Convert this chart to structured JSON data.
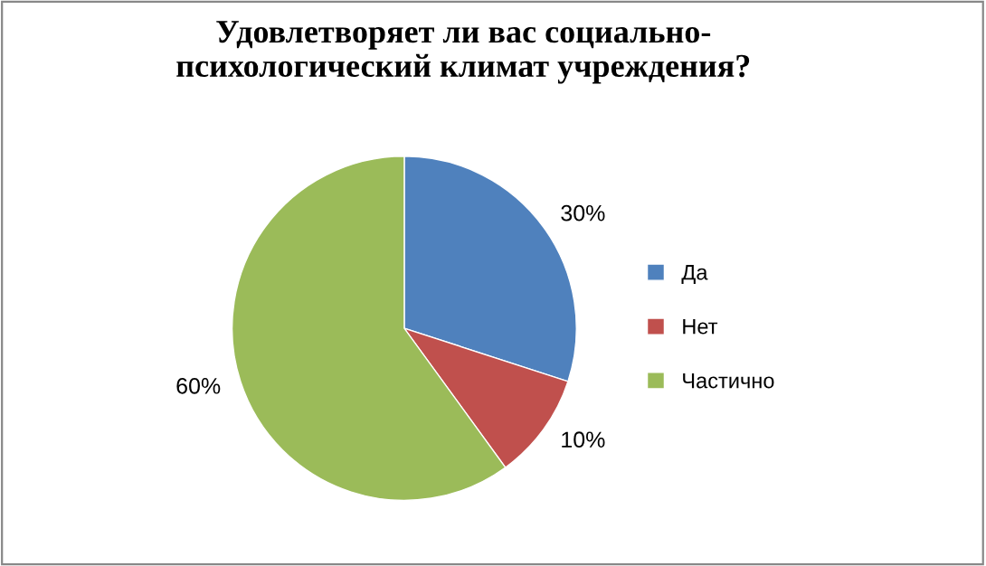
{
  "chart_data": {
    "type": "pie",
    "title": "Удовлетворяет ли вас социально-\nпсихологический климат учреждения?",
    "categories": [
      "Да",
      "Нет",
      "Частично"
    ],
    "values": [
      30,
      10,
      60
    ],
    "colors": [
      "#4f81bd",
      "#c0504d",
      "#9bbb59"
    ],
    "value_labels": [
      "30%",
      "10%",
      "60%"
    ],
    "legend": "right"
  }
}
